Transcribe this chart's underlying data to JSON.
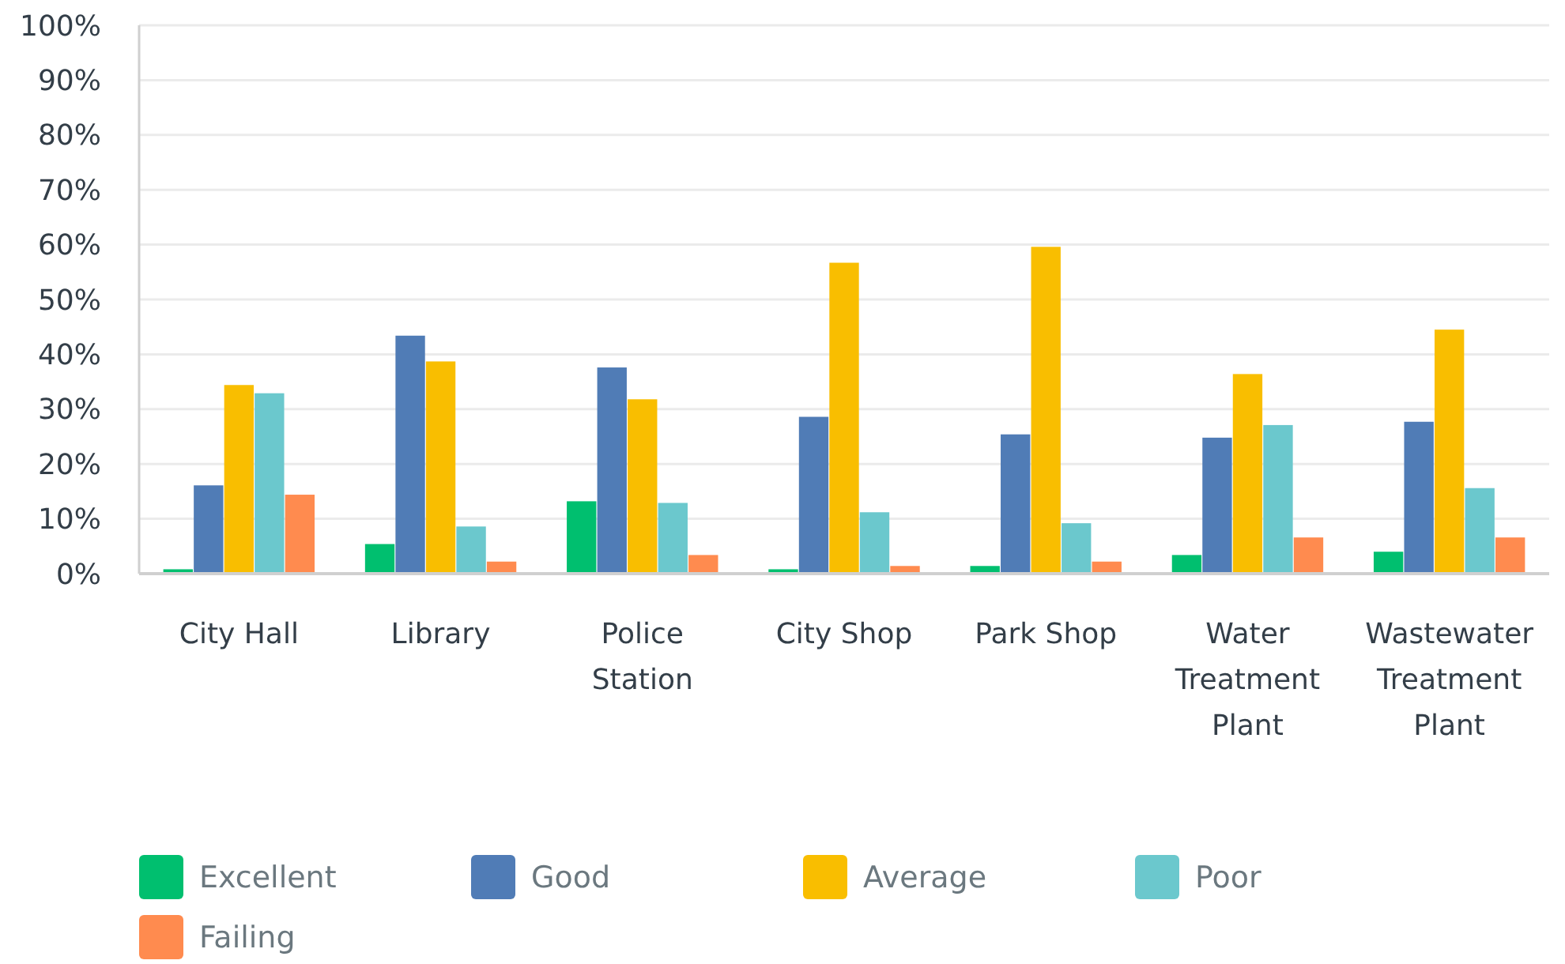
{
  "chart_data": {
    "type": "bar",
    "categories": [
      "City Hall",
      "Library",
      "Police Station",
      "City Shop",
      "Park Shop",
      "Water Treatment Plant",
      "Wastewater Treatment Plant"
    ],
    "series": [
      {
        "name": "Excellent",
        "color": "#00bf6f",
        "values": [
          0.8,
          5.4,
          13.2,
          0.8,
          1.4,
          3.4,
          4.0
        ]
      },
      {
        "name": "Good",
        "color": "#507cb6",
        "values": [
          16.1,
          43.4,
          37.6,
          28.6,
          25.4,
          24.8,
          27.7
        ]
      },
      {
        "name": "Average",
        "color": "#f9be00",
        "values": [
          34.4,
          38.7,
          31.8,
          56.7,
          59.6,
          36.4,
          44.5
        ]
      },
      {
        "name": "Poor",
        "color": "#6bc8cd",
        "values": [
          32.9,
          8.6,
          12.9,
          11.2,
          9.2,
          27.1,
          15.6
        ]
      },
      {
        "name": "Failing",
        "color": "#ff8b4f",
        "values": [
          14.4,
          2.2,
          3.4,
          1.4,
          2.2,
          6.6,
          6.6
        ]
      }
    ],
    "ylim": [
      0,
      100
    ],
    "yticks": [
      {
        "value": 0,
        "label": "0%"
      },
      {
        "value": 10,
        "label": "10%"
      },
      {
        "value": 20,
        "label": "20%"
      },
      {
        "value": 30,
        "label": "30%"
      },
      {
        "value": 40,
        "label": "40%"
      },
      {
        "value": 50,
        "label": "50%"
      },
      {
        "value": 60,
        "label": "60%"
      },
      {
        "value": 70,
        "label": "70%"
      },
      {
        "value": 80,
        "label": "80%"
      },
      {
        "value": 90,
        "label": "90%"
      },
      {
        "value": 100,
        "label": "100%"
      }
    ],
    "grid": "y",
    "legend": "bottom"
  }
}
